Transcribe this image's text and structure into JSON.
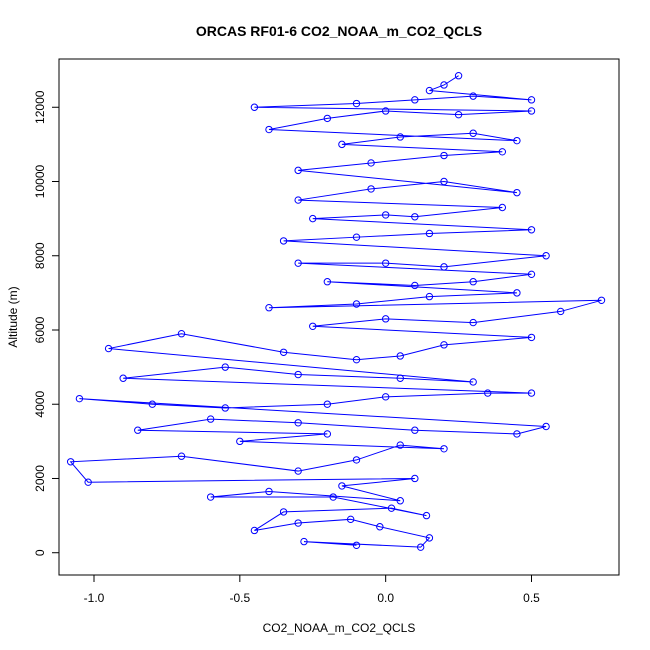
{
  "chart_data": {
    "type": "scatter",
    "title": "ORCAS RF01-6 CO2_NOAA_m_CO2_QCLS",
    "xlabel": "CO2_NOAA_m_CO2_QCLS",
    "ylabel": "Altitude (m)",
    "xlim": [
      -1.12,
      0.8
    ],
    "ylim": [
      -600,
      13300
    ],
    "x_ticks": [
      "-1.0",
      "-0.5",
      "0.0",
      "0.5"
    ],
    "x_tick_values": [
      -1.0,
      -0.5,
      0.0,
      0.5
    ],
    "y_ticks": [
      "0",
      "2000",
      "4000",
      "6000",
      "8000",
      "10000",
      "12000"
    ],
    "y_tick_values": [
      0,
      2000,
      4000,
      6000,
      8000,
      10000,
      12000
    ],
    "grid": false,
    "legend": "none",
    "color": "#0000ff",
    "series": [
      {
        "values": [
          [
            -0.1,
            200
          ],
          [
            -0.28,
            300
          ],
          [
            0.12,
            150
          ],
          [
            0.15,
            400
          ],
          [
            -0.02,
            700
          ],
          [
            -0.12,
            900
          ],
          [
            -0.3,
            800
          ],
          [
            -0.45,
            600
          ],
          [
            -0.35,
            1100
          ],
          [
            0.02,
            1200
          ],
          [
            0.14,
            1000
          ],
          [
            -0.18,
            1500
          ],
          [
            -0.6,
            1500
          ],
          [
            -0.4,
            1650
          ],
          [
            0.05,
            1400
          ],
          [
            -0.15,
            1800
          ],
          [
            0.1,
            2000
          ],
          [
            -1.02,
            1900
          ],
          [
            -1.08,
            2450
          ],
          [
            -0.7,
            2600
          ],
          [
            -0.3,
            2200
          ],
          [
            -0.1,
            2500
          ],
          [
            0.05,
            2900
          ],
          [
            0.2,
            2800
          ],
          [
            -0.5,
            3000
          ],
          [
            -0.2,
            3200
          ],
          [
            -0.85,
            3300
          ],
          [
            -0.6,
            3600
          ],
          [
            -0.3,
            3500
          ],
          [
            0.1,
            3300
          ],
          [
            0.45,
            3200
          ],
          [
            0.55,
            3400
          ],
          [
            -1.05,
            4150
          ],
          [
            -0.8,
            4000
          ],
          [
            -0.55,
            3900
          ],
          [
            -0.2,
            4000
          ],
          [
            0.0,
            4200
          ],
          [
            0.35,
            4300
          ],
          [
            0.5,
            4300
          ],
          [
            -0.9,
            4700
          ],
          [
            -0.55,
            5000
          ],
          [
            -0.3,
            4800
          ],
          [
            0.05,
            4700
          ],
          [
            0.3,
            4600
          ],
          [
            -0.95,
            5500
          ],
          [
            -0.7,
            5900
          ],
          [
            -0.35,
            5400
          ],
          [
            -0.1,
            5200
          ],
          [
            0.05,
            5300
          ],
          [
            0.2,
            5600
          ],
          [
            0.5,
            5800
          ],
          [
            -0.25,
            6100
          ],
          [
            0.0,
            6300
          ],
          [
            0.3,
            6200
          ],
          [
            0.6,
            6500
          ],
          [
            0.74,
            6800
          ],
          [
            -0.4,
            6600
          ],
          [
            -0.1,
            6700
          ],
          [
            0.15,
            6900
          ],
          [
            0.45,
            7000
          ],
          [
            -0.2,
            7300
          ],
          [
            0.1,
            7200
          ],
          [
            0.3,
            7300
          ],
          [
            0.5,
            7500
          ],
          [
            -0.3,
            7800
          ],
          [
            0.0,
            7800
          ],
          [
            0.2,
            7700
          ],
          [
            0.55,
            8000
          ],
          [
            -0.35,
            8400
          ],
          [
            -0.1,
            8500
          ],
          [
            0.15,
            8600
          ],
          [
            0.5,
            8700
          ],
          [
            -0.25,
            9000
          ],
          [
            0.0,
            9100
          ],
          [
            0.1,
            9050
          ],
          [
            0.4,
            9300
          ],
          [
            -0.3,
            9500
          ],
          [
            -0.05,
            9800
          ],
          [
            0.2,
            10000
          ],
          [
            0.45,
            9700
          ],
          [
            -0.3,
            10300
          ],
          [
            -0.05,
            10500
          ],
          [
            0.2,
            10700
          ],
          [
            0.4,
            10800
          ],
          [
            -0.15,
            11000
          ],
          [
            0.05,
            11200
          ],
          [
            0.3,
            11300
          ],
          [
            0.45,
            11100
          ],
          [
            -0.4,
            11400
          ],
          [
            -0.2,
            11700
          ],
          [
            0.0,
            11900
          ],
          [
            0.25,
            11800
          ],
          [
            0.5,
            11900
          ],
          [
            -0.45,
            12000
          ],
          [
            -0.1,
            12100
          ],
          [
            0.1,
            12200
          ],
          [
            0.3,
            12300
          ],
          [
            0.5,
            12200
          ],
          [
            0.15,
            12450
          ],
          [
            0.2,
            12600
          ],
          [
            0.25,
            12850
          ]
        ]
      }
    ]
  }
}
